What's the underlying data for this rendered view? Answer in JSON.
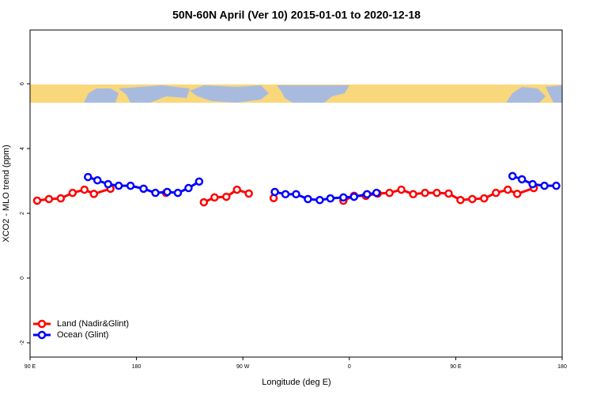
{
  "chart_data": {
    "type": "line",
    "title": "50N-60N April (Ver 10)   2015-01-01 to 2020-12-18",
    "xlabel": "Longitude (deg E)",
    "ylabel": "XCO2 - MLO trend (ppm)",
    "xlim": [
      90,
      540
    ],
    "xticks": [
      {
        "value": 90,
        "label": "90 E"
      },
      180,
      {
        "value": 270,
        "label": "90 W"
      },
      {
        "value": 360,
        "label": "0"
      },
      {
        "value": 450,
        "label": "90 E"
      },
      {
        "value": 540,
        "label": "180"
      }
    ],
    "ylim": [
      -2.44,
      7.66
    ],
    "yticks": [
      -2,
      0,
      2,
      4,
      6
    ],
    "legend": "bottom-left",
    "series": [
      {
        "name": "Land (Nadir&Glint)",
        "color": "#ff0000",
        "x": [
          96,
          106,
          116,
          126,
          136,
          144,
          158,
          180,
          205,
          230,
          237,
          246,
          256,
          265,
          275,
          285,
          296,
          320,
          355,
          364,
          374,
          384,
          394,
          404,
          414,
          424,
          434,
          444,
          454,
          464,
          474,
          484,
          494,
          502,
          516
        ],
        "values": [
          2.39,
          2.44,
          2.46,
          2.63,
          2.73,
          2.6,
          2.76,
          null,
          2.63,
          null,
          2.34,
          2.49,
          2.51,
          2.73,
          2.61,
          null,
          2.47,
          null,
          2.39,
          2.54,
          2.54,
          2.61,
          2.63,
          2.73,
          2.59,
          2.63,
          2.63,
          2.61,
          2.41,
          2.44,
          2.46,
          2.63,
          2.73,
          2.6,
          2.78
        ]
      },
      {
        "name": "Ocean (Glint)",
        "color": "#0000ff",
        "x": [
          139,
          147,
          156,
          165,
          175,
          186,
          196,
          206,
          215,
          224,
          233,
          260,
          297,
          306,
          315,
          325,
          335,
          344,
          355,
          364,
          375,
          383,
          440,
          498,
          506,
          515,
          525,
          535
        ],
        "values": [
          3.12,
          3.02,
          2.9,
          2.85,
          2.85,
          2.76,
          2.63,
          2.66,
          2.63,
          2.78,
          2.98,
          null,
          2.66,
          2.59,
          2.59,
          2.44,
          2.41,
          2.46,
          2.49,
          2.51,
          2.59,
          2.63,
          null,
          3.15,
          3.05,
          2.9,
          2.85,
          2.85
        ]
      }
    ]
  }
}
